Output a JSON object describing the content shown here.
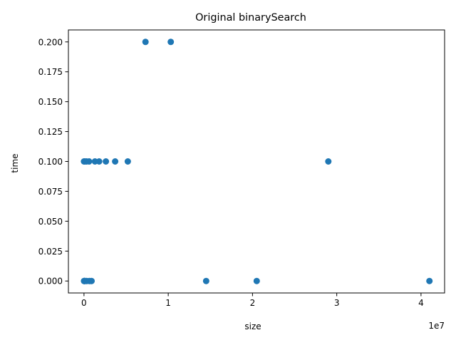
{
  "chart_data": {
    "type": "scatter",
    "title": "Original binarySearch",
    "xlabel": "size",
    "ylabel": "time",
    "x_offset_label": "1e7",
    "xlim": [
      -1850000,
      42800000
    ],
    "ylim": [
      -0.01,
      0.21
    ],
    "xticks": [
      {
        "value": 0,
        "label": "0"
      },
      {
        "value": 10000000,
        "label": "1"
      },
      {
        "value": 20000000,
        "label": "2"
      },
      {
        "value": 30000000,
        "label": "3"
      },
      {
        "value": 40000000,
        "label": "4"
      }
    ],
    "yticks": [
      {
        "value": 0.0,
        "label": "0.000"
      },
      {
        "value": 0.025,
        "label": "0.025"
      },
      {
        "value": 0.05,
        "label": "0.050"
      },
      {
        "value": 0.075,
        "label": "0.075"
      },
      {
        "value": 0.1,
        "label": "0.100"
      },
      {
        "value": 0.125,
        "label": "0.125"
      },
      {
        "value": 0.15,
        "label": "0.150"
      },
      {
        "value": 0.175,
        "label": "0.175"
      },
      {
        "value": 0.2,
        "label": "0.200"
      }
    ],
    "grid": false,
    "marker_color": "#1f77b4",
    "series": [
      {
        "points": [
          {
            "x": 10000,
            "y": 0.0
          },
          {
            "x": 20000,
            "y": 0.0
          },
          {
            "x": 40000,
            "y": 0.0
          },
          {
            "x": 80000,
            "y": 0.0
          },
          {
            "x": 160000,
            "y": 0.0
          },
          {
            "x": 320000,
            "y": 0.0
          },
          {
            "x": 640000,
            "y": 0.0
          },
          {
            "x": 900000,
            "y": 0.0
          },
          {
            "x": 14500000,
            "y": 0.0
          },
          {
            "x": 20500000,
            "y": 0.0
          },
          {
            "x": 41000000,
            "y": 0.0
          },
          {
            "x": 0,
            "y": 0.1
          },
          {
            "x": 100000,
            "y": 0.1
          },
          {
            "x": 300000,
            "y": 0.1
          },
          {
            "x": 600000,
            "y": 0.1
          },
          {
            "x": 1300000,
            "y": 0.1
          },
          {
            "x": 1800000,
            "y": 0.1
          },
          {
            "x": 2600000,
            "y": 0.1
          },
          {
            "x": 3700000,
            "y": 0.1
          },
          {
            "x": 5200000,
            "y": 0.1
          },
          {
            "x": 29000000,
            "y": 0.1
          },
          {
            "x": 7300000,
            "y": 0.2
          },
          {
            "x": 10300000,
            "y": 0.2
          }
        ]
      }
    ]
  }
}
